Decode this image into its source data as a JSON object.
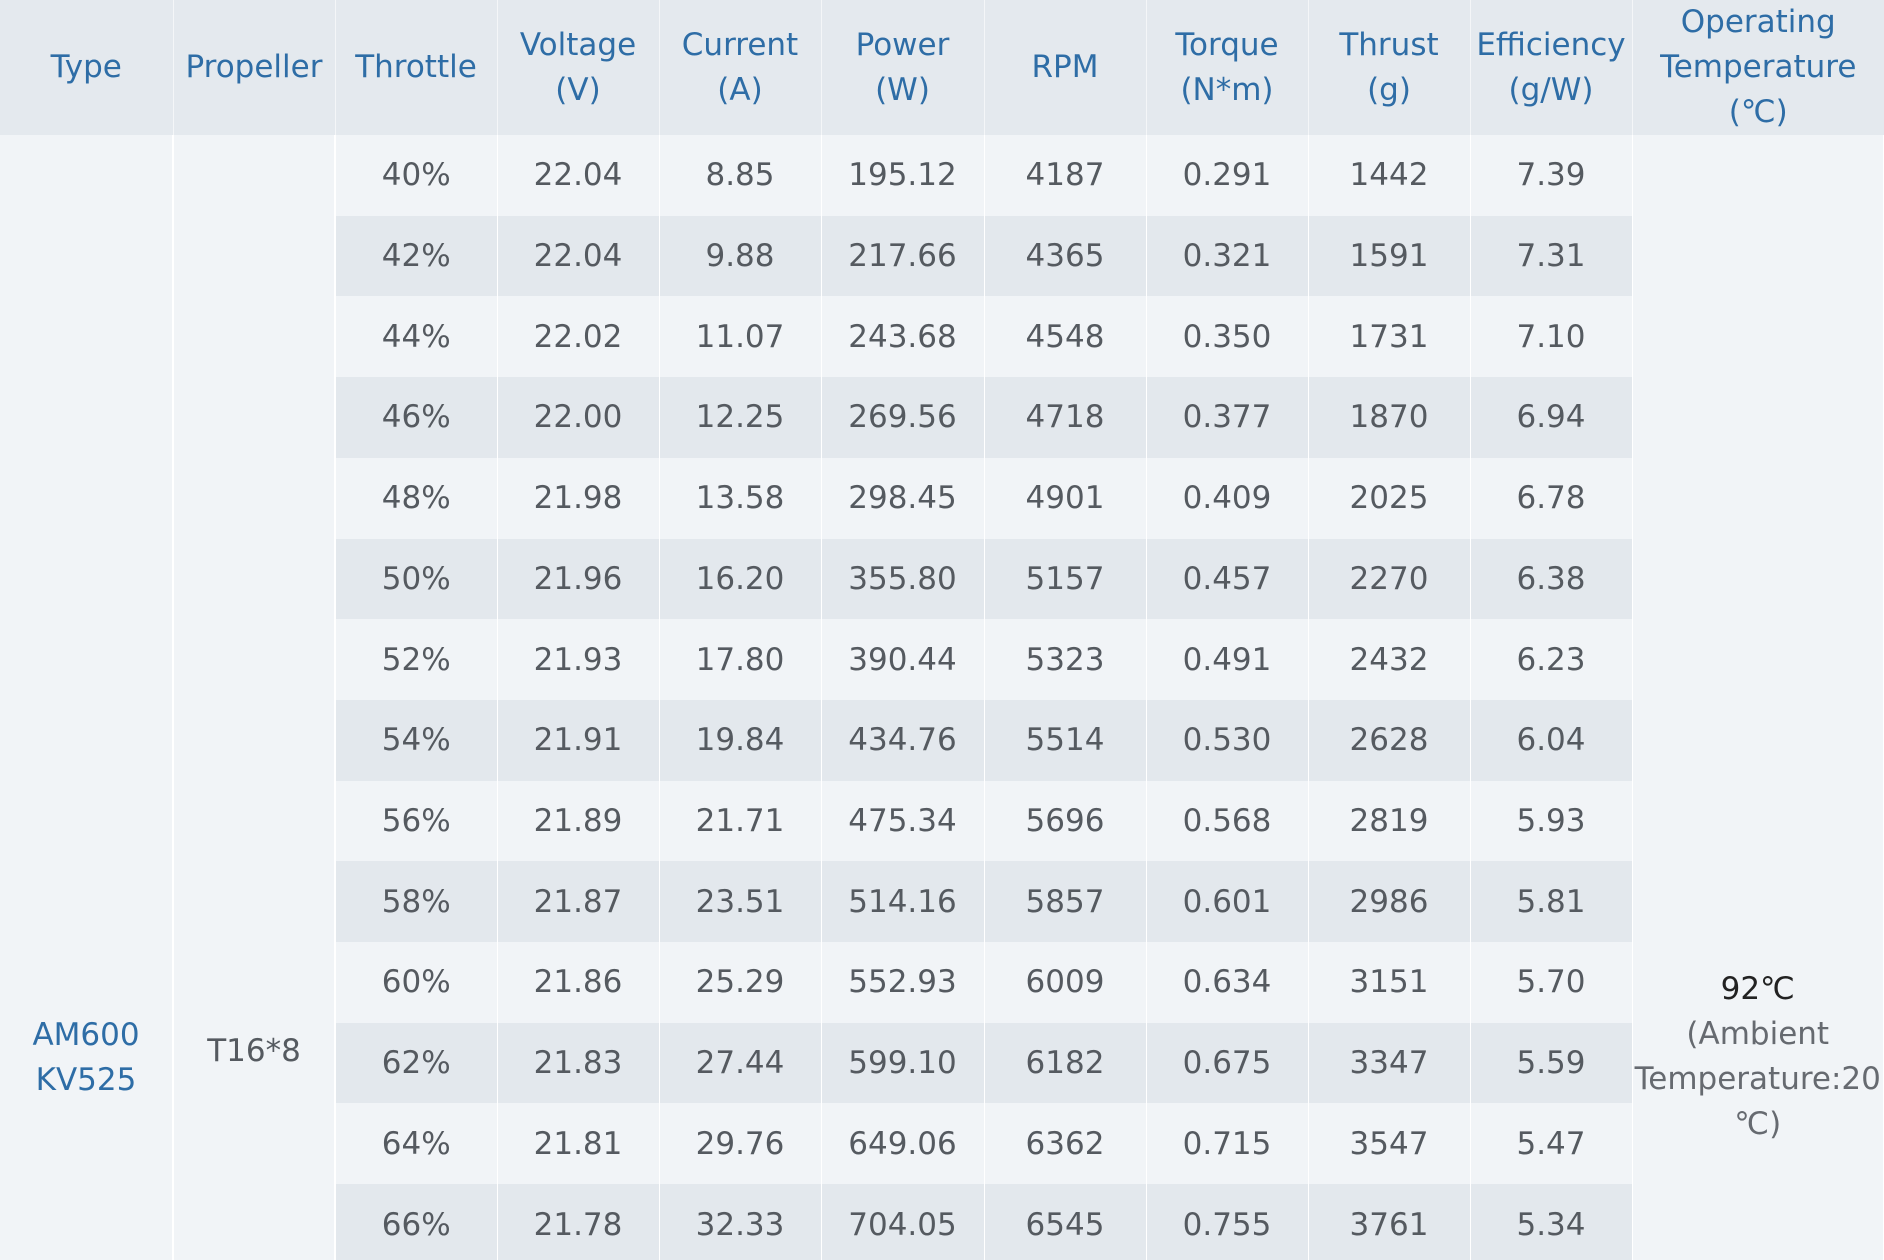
{
  "headers": {
    "type": "Type",
    "propeller": "Propeller",
    "throttle": "Throttle",
    "voltage": [
      "Voltage",
      "(V)"
    ],
    "current": [
      "Current",
      "(A)"
    ],
    "power": [
      "Power",
      "(W)"
    ],
    "rpm": "RPM",
    "torque": [
      "Torque",
      "(N*m)"
    ],
    "thrust": [
      "Thrust",
      "(g)"
    ],
    "efficiency": [
      "Efficiency",
      "(g/W)"
    ],
    "temperature": [
      "Operating",
      "Temperature",
      "(℃)"
    ]
  },
  "type": [
    "AM600",
    "KV525"
  ],
  "propeller": "T16*8",
  "operating_temperature": {
    "value": "92℃",
    "note_lines": [
      "(Ambient",
      "Temperature:20",
      "℃)"
    ]
  },
  "rows": [
    [
      "40%",
      "22.04",
      "8.85",
      "195.12",
      "4187",
      "0.291",
      "1442",
      "7.39"
    ],
    [
      "42%",
      "22.04",
      "9.88",
      "217.66",
      "4365",
      "0.321",
      "1591",
      "7.31"
    ],
    [
      "44%",
      "22.02",
      "11.07",
      "243.68",
      "4548",
      "0.350",
      "1731",
      "7.10"
    ],
    [
      "46%",
      "22.00",
      "12.25",
      "269.56",
      "4718",
      "0.377",
      "1870",
      "6.94"
    ],
    [
      "48%",
      "21.98",
      "13.58",
      "298.45",
      "4901",
      "0.409",
      "2025",
      "6.78"
    ],
    [
      "50%",
      "21.96",
      "16.20",
      "355.80",
      "5157",
      "0.457",
      "2270",
      "6.38"
    ],
    [
      "52%",
      "21.93",
      "17.80",
      "390.44",
      "5323",
      "0.491",
      "2432",
      "6.23"
    ],
    [
      "54%",
      "21.91",
      "19.84",
      "434.76",
      "5514",
      "0.530",
      "2628",
      "6.04"
    ],
    [
      "56%",
      "21.89",
      "21.71",
      "475.34",
      "5696",
      "0.568",
      "2819",
      "5.93"
    ],
    [
      "58%",
      "21.87",
      "23.51",
      "514.16",
      "5857",
      "0.601",
      "2986",
      "5.81"
    ],
    [
      "60%",
      "21.86",
      "25.29",
      "552.93",
      "6009",
      "0.634",
      "3151",
      "5.70"
    ],
    [
      "62%",
      "21.83",
      "27.44",
      "599.10",
      "6182",
      "0.675",
      "3347",
      "5.59"
    ],
    [
      "64%",
      "21.81",
      "29.76",
      "649.06",
      "6362",
      "0.715",
      "3547",
      "5.47"
    ],
    [
      "66%",
      "21.78",
      "32.33",
      "704.05",
      "6545",
      "0.755",
      "3761",
      "5.34"
    ]
  ]
}
